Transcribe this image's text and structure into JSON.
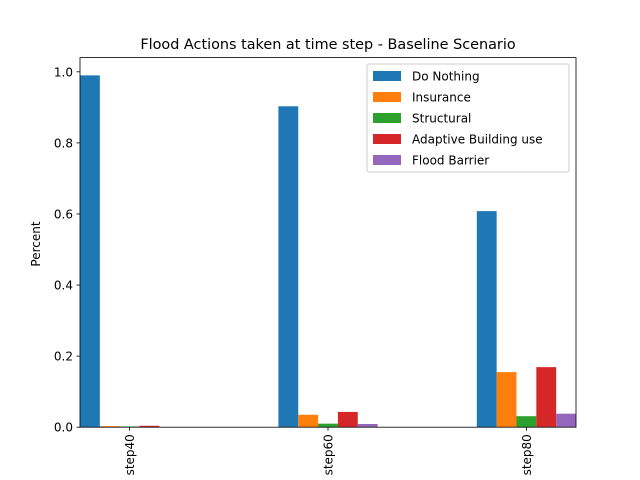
{
  "chart_data": {
    "type": "bar",
    "title": "Flood Actions taken at time step - Baseline Scenario",
    "xlabel": "",
    "ylabel": "Percent",
    "categories": [
      "step40",
      "step60",
      "step80"
    ],
    "ylim": [
      0,
      1.04
    ],
    "yticks": [
      "0.0",
      "0.2",
      "0.4",
      "0.6",
      "0.8",
      "1.0"
    ],
    "grid": false,
    "legend_position": "top-right",
    "series": [
      {
        "name": "Do Nothing",
        "color": "#1f77b4",
        "values": [
          0.99,
          0.903,
          0.608
        ]
      },
      {
        "name": "Insurance",
        "color": "#ff7f0e",
        "values": [
          0.003,
          0.035,
          0.155
        ]
      },
      {
        "name": "Structural",
        "color": "#2ca02c",
        "values": [
          0.002,
          0.01,
          0.031
        ]
      },
      {
        "name": "Adaptive Building use",
        "color": "#d62728",
        "values": [
          0.004,
          0.043,
          0.169
        ]
      },
      {
        "name": "Flood Barrier",
        "color": "#9467bd",
        "values": [
          0.0,
          0.009,
          0.038
        ]
      }
    ]
  }
}
